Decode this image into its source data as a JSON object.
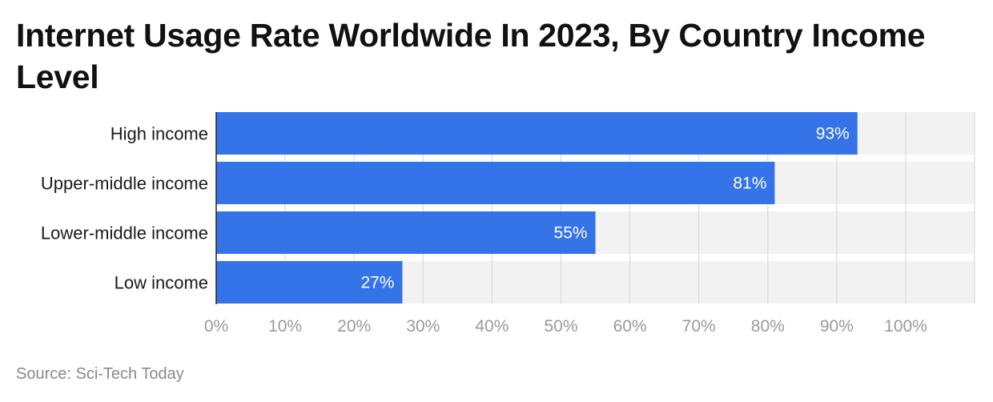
{
  "chart_data": {
    "type": "bar",
    "orientation": "horizontal",
    "title": "Internet Usage Rate Worldwide In 2023, By Country Income Level",
    "categories": [
      "High income",
      "Upper-middle income",
      "Lower-middle income",
      "Low income"
    ],
    "values": [
      93,
      81,
      55,
      27
    ],
    "value_labels": [
      "93%",
      "81%",
      "55%",
      "27%"
    ],
    "xlim": [
      0,
      110
    ],
    "xticks": [
      0,
      10,
      20,
      30,
      40,
      50,
      60,
      70,
      80,
      90,
      100
    ],
    "xtick_labels": [
      "0%",
      "10%",
      "20%",
      "30%",
      "40%",
      "50%",
      "60%",
      "70%",
      "80%",
      "90%",
      "100%"
    ],
    "xlabel": "",
    "ylabel": "",
    "grid": true,
    "bar_color": "#3474e8",
    "track_color": "#f2f2f2",
    "gridline_color": "#d6d6d6",
    "source": "Source: Sci-Tech Today"
  }
}
